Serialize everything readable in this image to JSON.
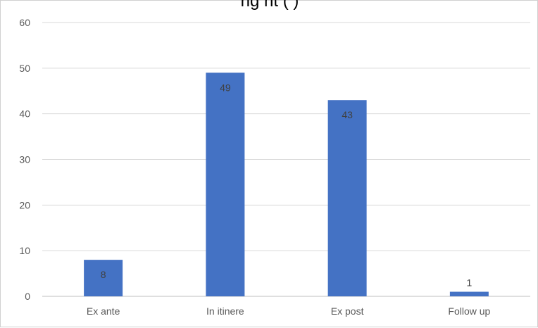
{
  "chart_data": {
    "type": "bar",
    "title": "ng   nt   (  )",
    "categories": [
      "Ex ante",
      "In itinere",
      "Ex post",
      "Follow up"
    ],
    "values": [
      8,
      49,
      43,
      1
    ],
    "data_labels": [
      "8",
      "49",
      "43",
      "1"
    ],
    "y_ticks": [
      "0",
      "10",
      "20",
      "30",
      "40",
      "50",
      "60"
    ],
    "ylim": [
      0,
      60
    ],
    "xlabel": "",
    "ylabel": "",
    "grid": true,
    "legend": "none",
    "bar_color": "#4472c4",
    "grid_color": "#d9d9d9",
    "axis_color": "#bfbfbf"
  }
}
